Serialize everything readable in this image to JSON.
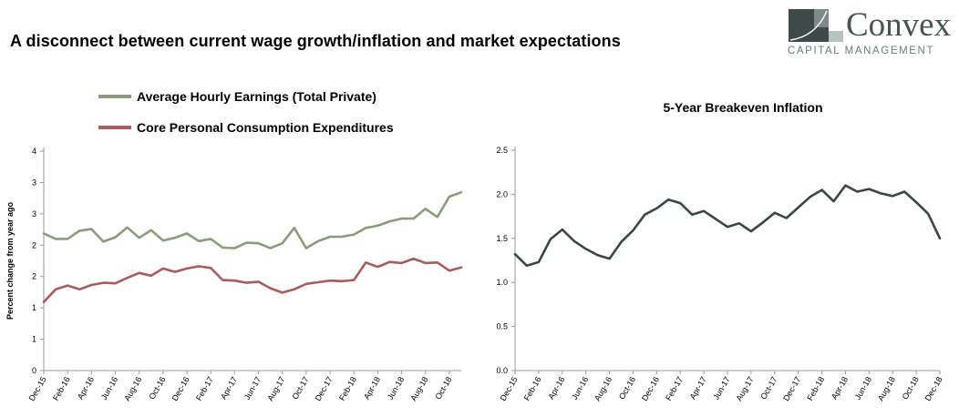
{
  "page_title": "A disconnect between current wage growth/inflation and market expectations",
  "logo": {
    "name": "Convex",
    "subtitle": "CAPITAL MANAGEMENT"
  },
  "colors": {
    "earnings": "#8e9a7c",
    "pce": "#a85c5e",
    "breakeven": "#3d4644",
    "axis": "#9a9a9a"
  },
  "chart_data": [
    {
      "type": "line",
      "title": "",
      "xlabel": "",
      "ylabel": "Percent change from year ago",
      "ylim": [
        0,
        4
      ],
      "y_tick_labels": [
        "0",
        "1",
        "1",
        "2",
        "2",
        "3",
        "3",
        "4"
      ],
      "x_tick_labels": [
        "Dec-15",
        "Feb-16",
        "Apr-16",
        "Jun-16",
        "Aug-16",
        "Oct-16",
        "Dec-16",
        "Feb-17",
        "Apr-17",
        "Jun-17",
        "Aug-17",
        "Oct-17",
        "Dec-17",
        "Feb-18",
        "Apr-18",
        "Jun-18",
        "Aug-18",
        "Oct-18"
      ],
      "legend": "top-left",
      "grid": false,
      "series": [
        {
          "name": "Average Hourly Earnings (Total Private)",
          "color_key": "earnings",
          "values": [
            2.5,
            2.4,
            2.4,
            2.55,
            2.58,
            2.35,
            2.43,
            2.61,
            2.42,
            2.56,
            2.37,
            2.42,
            2.5,
            2.36,
            2.4,
            2.24,
            2.23,
            2.33,
            2.32,
            2.23,
            2.32,
            2.6,
            2.23,
            2.36,
            2.44,
            2.44,
            2.48,
            2.6,
            2.64,
            2.72,
            2.77,
            2.77,
            2.95,
            2.8,
            3.17,
            3.25
          ]
        },
        {
          "name": "Core Personal Consumption Expenditures",
          "color_key": "pce",
          "values": [
            1.25,
            1.48,
            1.55,
            1.48,
            1.56,
            1.6,
            1.59,
            1.69,
            1.78,
            1.73,
            1.86,
            1.8,
            1.86,
            1.9,
            1.87,
            1.65,
            1.64,
            1.6,
            1.62,
            1.5,
            1.42,
            1.48,
            1.58,
            1.61,
            1.64,
            1.63,
            1.65,
            1.97,
            1.89,
            1.98,
            1.96,
            2.04,
            1.96,
            1.97,
            1.82,
            1.88
          ]
        }
      ]
    },
    {
      "type": "line",
      "title": "5-Year Breakeven Inflation",
      "xlabel": "",
      "ylabel": "",
      "ylim": [
        0,
        2.5
      ],
      "y_ticks": [
        "0.0",
        "0.5",
        "1.0",
        "1.5",
        "2.0",
        "2.5"
      ],
      "x_tick_labels": [
        "Dec-15",
        "Feb-16",
        "Apr-16",
        "Jun-16",
        "Aug-16",
        "Oct-16",
        "Dec-16",
        "Feb-17",
        "Apr-17",
        "Jun-17",
        "Aug-17",
        "Oct-17",
        "Dec-17",
        "Feb-18",
        "Apr-18",
        "Jun-18",
        "Aug-18",
        "Oct-18",
        "Dec-18"
      ],
      "grid": false,
      "series": [
        {
          "color_key": "breakeven",
          "values": [
            1.32,
            1.19,
            1.23,
            1.49,
            1.6,
            1.47,
            1.38,
            1.31,
            1.27,
            1.46,
            1.59,
            1.77,
            1.84,
            1.94,
            1.9,
            1.77,
            1.81,
            1.72,
            1.63,
            1.67,
            1.58,
            1.68,
            1.79,
            1.73,
            1.85,
            1.97,
            2.05,
            1.92,
            2.1,
            2.03,
            2.06,
            2.01,
            1.98,
            2.03,
            1.91,
            1.78,
            1.5
          ]
        }
      ]
    }
  ]
}
